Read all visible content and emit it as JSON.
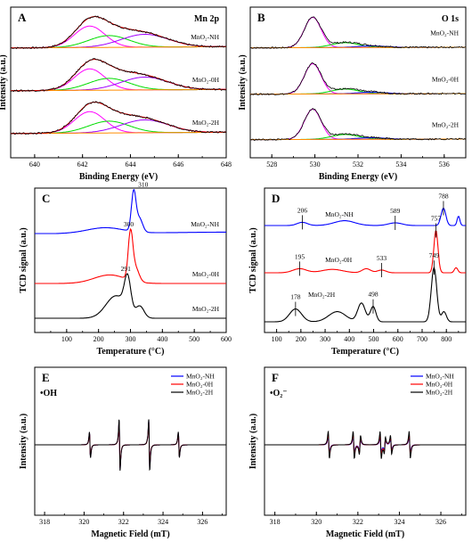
{
  "chart_data": [
    {
      "id": "A",
      "type": "line",
      "panel_label": "A",
      "title": "Mn 2p",
      "xlabel": "Binding Energy (eV)",
      "ylabel": "Intensity (a.u.)",
      "xlim": [
        639,
        648
      ],
      "xticks": [
        640,
        642,
        644,
        646,
        648
      ],
      "yticks": false,
      "series": [
        {
          "name": "MnO2-NH",
          "label": "MnO₂-NH"
        },
        {
          "name": "MnO2-0H",
          "label": "MnO₂-0H"
        },
        {
          "name": "MnO2-2H",
          "label": "MnO₂-2H"
        }
      ],
      "fit_components": [
        {
          "color": "#ff00ff",
          "center": 642.3,
          "width": 0.9
        },
        {
          "color": "#00dd00",
          "center": 643.1,
          "width": 1.2
        },
        {
          "color": "#a000ff",
          "center": 644.6,
          "width": 1.4
        },
        {
          "color": "#ff8c00",
          "role": "background"
        },
        {
          "color": "#ff0000",
          "role": "envelope"
        },
        {
          "color": "#000000",
          "role": "measured"
        }
      ]
    },
    {
      "id": "B",
      "type": "line",
      "panel_label": "B",
      "title": "O 1s",
      "xlabel": "Binding Energy (eV)",
      "ylabel": "Intensity (a.u.)",
      "xlim": [
        527,
        537
      ],
      "xticks": [
        528,
        530,
        532,
        534,
        536
      ],
      "yticks": false,
      "series": [
        {
          "name": "MnO2-NH",
          "label": "MnO₂-NH"
        },
        {
          "name": "MnO2-0H",
          "label": "MnO₂-0H"
        },
        {
          "name": "MnO2-2H",
          "label": "MnO₂-2H"
        }
      ],
      "fit_components": [
        {
          "color": "#ff00ff",
          "center": 529.9,
          "width": 0.55
        },
        {
          "color": "#00dd00",
          "center": 531.4,
          "width": 0.9
        },
        {
          "color": "#0000ff",
          "center": 532.6,
          "width": 1.0
        },
        {
          "color": "#ff8c00",
          "role": "background"
        },
        {
          "color": "#000000",
          "role": "measured"
        }
      ]
    },
    {
      "id": "C",
      "type": "line",
      "panel_label": "C",
      "xlabel": "Temperature (°C)",
      "ylabel": "TCD signal (a.u.)",
      "xlim": [
        0,
        600
      ],
      "xticks": [
        100,
        200,
        300,
        400,
        500,
        600
      ],
      "yticks": false,
      "series": [
        {
          "name": "MnO2-NH",
          "label": "MnO₂-NH",
          "color": "#0000ff",
          "peak_x": 310,
          "peak_label": "310"
        },
        {
          "name": "MnO2-0H",
          "label": "MnO₂-0H",
          "color": "#ff0000",
          "peak_x": 300,
          "peak_label": "300"
        },
        {
          "name": "MnO2-2H",
          "label": "MnO₂-2H",
          "color": "#000000",
          "peak_x": 291,
          "peak_label": "291"
        }
      ]
    },
    {
      "id": "D",
      "type": "line",
      "panel_label": "D",
      "xlabel": "Temperature (°C)",
      "ylabel": "TCD signal (a.u.)",
      "xlim": [
        50,
        880
      ],
      "xticks": [
        100,
        200,
        300,
        400,
        500,
        600,
        700,
        800
      ],
      "yticks": false,
      "series": [
        {
          "name": "MnO2-NH",
          "label": "MnO₂-NH",
          "color": "#0000ff",
          "peaks": [
            206,
            589,
            788
          ],
          "peak_labels": [
            "206",
            "589",
            "788"
          ]
        },
        {
          "name": "MnO2-0H",
          "label": "MnO₂-0H",
          "color": "#ff0000",
          "peaks": [
            195,
            533,
            757
          ],
          "peak_labels": [
            "195",
            "533",
            "757"
          ]
        },
        {
          "name": "MnO2-2H",
          "label": "MnO₂-2H",
          "color": "#000000",
          "peaks": [
            178,
            498,
            749
          ],
          "peak_labels": [
            "178",
            "498",
            "749"
          ]
        }
      ]
    },
    {
      "id": "E",
      "type": "line",
      "panel_label": "E",
      "annotation": "•OH",
      "xlabel": "Magnetic Field (mT)",
      "ylabel": "Intensity (a.u.)",
      "xlim": [
        317.5,
        327.2
      ],
      "xticks": [
        318,
        320,
        322,
        324,
        326
      ],
      "yticks": false,
      "line_positions_mT": [
        320.3,
        321.8,
        323.3,
        324.8
      ],
      "line_relative_intensity": [
        1,
        2,
        2,
        1
      ],
      "legend": "top-right",
      "series": [
        {
          "name": "MnO2-NH",
          "label": "MnO₂-NH",
          "color": "#0000ff",
          "amplitude": 0.92
        },
        {
          "name": "MnO2-0H",
          "label": "MnO₂-0H",
          "color": "#ff0000",
          "amplitude": 0.88
        },
        {
          "name": "MnO2-2H",
          "label": "MnO₂-2H",
          "color": "#000000",
          "amplitude": 1.0
        }
      ]
    },
    {
      "id": "F",
      "type": "line",
      "panel_label": "F",
      "annotation": "•O₂⁻",
      "xlabel": "Magnetic Field (mT)",
      "ylabel": "Intensity (a.u.)",
      "xlim": [
        317.5,
        327.2
      ],
      "xticks": [
        318,
        320,
        322,
        324,
        326
      ],
      "yticks": false,
      "line_positions_mT": [
        320.6,
        321.8,
        322.1,
        323.1,
        323.3,
        323.6,
        324.5
      ],
      "line_relative_intensity": [
        1,
        1,
        -0.7,
        1,
        -0.6,
        0.7,
        1
      ],
      "legend": "top-right",
      "series": [
        {
          "name": "MnO2-NH",
          "label": "MnO₂-NH",
          "color": "#0000ff",
          "amplitude": 0.55
        },
        {
          "name": "MnO2-0H",
          "label": "MnO₂-0H",
          "color": "#ff0000",
          "amplitude": 0.75
        },
        {
          "name": "MnO2-2H",
          "label": "MnO₂-2H",
          "color": "#000000",
          "amplitude": 1.0
        }
      ]
    }
  ]
}
